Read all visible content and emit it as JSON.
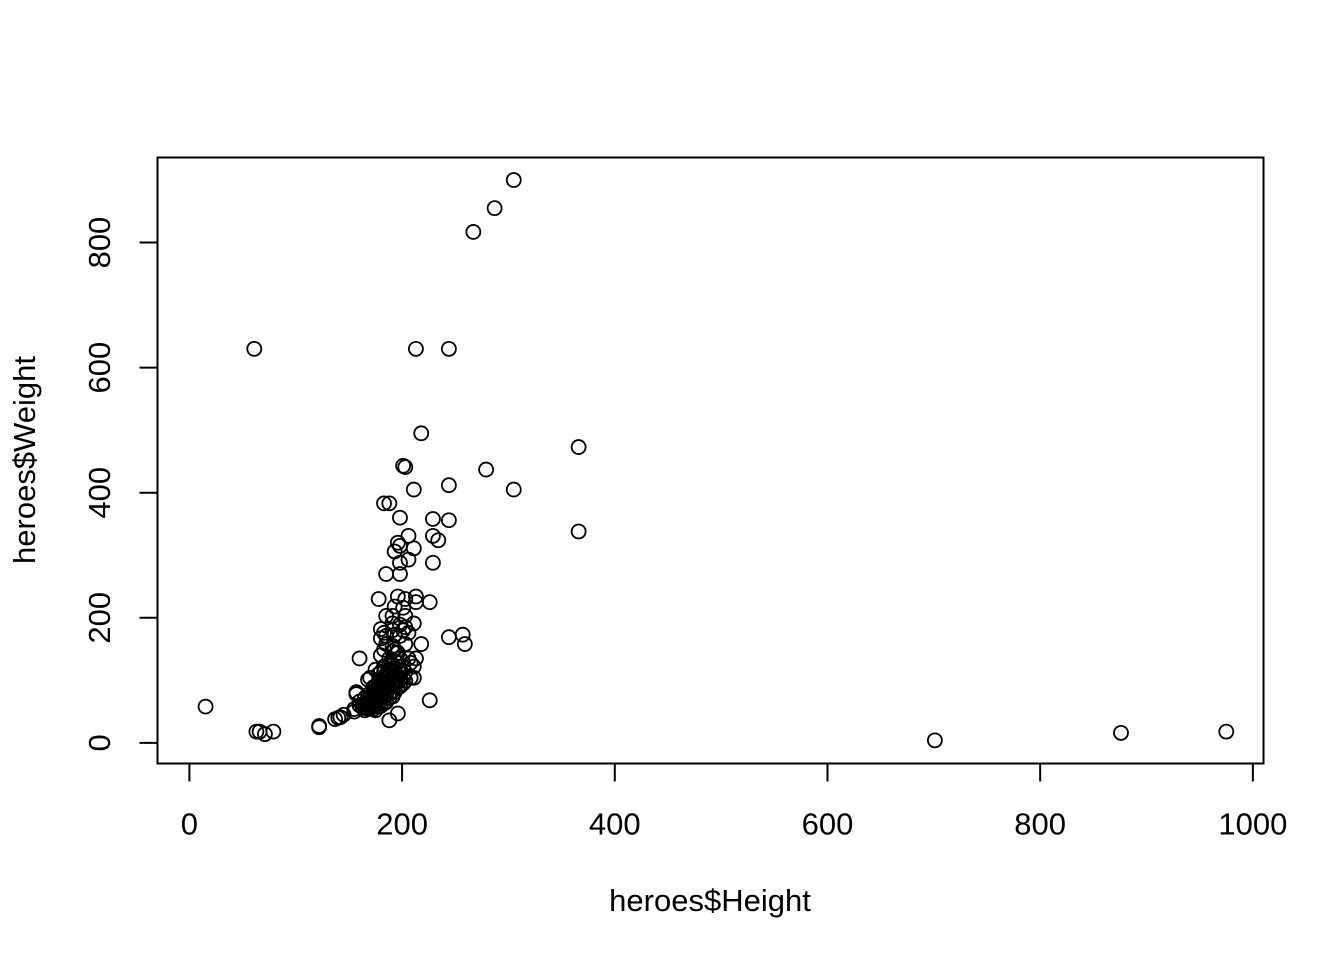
{
  "chart_data": {
    "type": "scatter",
    "title": "",
    "xlabel": "heroes$Height",
    "ylabel": "heroes$Weight",
    "xlim": [
      -30,
      1010
    ],
    "ylim": [
      -33,
      936
    ],
    "x_ticks": [
      0,
      200,
      400,
      600,
      800,
      1000
    ],
    "y_ticks": [
      0,
      200,
      400,
      600,
      800
    ],
    "x_tick_labels": [
      "0",
      "200",
      "400",
      "600",
      "800",
      "1000"
    ],
    "y_tick_labels": [
      "0",
      "200",
      "400",
      "600",
      "800"
    ],
    "grid": false,
    "legend": "none",
    "marker": "open-circle",
    "points": [
      [
        15.2,
        58
      ],
      [
        61,
        630
      ],
      [
        63,
        18
      ],
      [
        66,
        18
      ],
      [
        71,
        14
      ],
      [
        79,
        18
      ],
      [
        122,
        27
      ],
      [
        122,
        25
      ],
      [
        137,
        38
      ],
      [
        140,
        40
      ],
      [
        142,
        41
      ],
      [
        145,
        45
      ],
      [
        155,
        50
      ],
      [
        155,
        54
      ],
      [
        157,
        78
      ],
      [
        157,
        81
      ],
      [
        160,
        60
      ],
      [
        160,
        66
      ],
      [
        160,
        135
      ],
      [
        163,
        56
      ],
      [
        163,
        62
      ],
      [
        165,
        52
      ],
      [
        165,
        57
      ],
      [
        165,
        63
      ],
      [
        165,
        72
      ],
      [
        168,
        54
      ],
      [
        168,
        61
      ],
      [
        168,
        70
      ],
      [
        168,
        77
      ],
      [
        168,
        101
      ],
      [
        170,
        55
      ],
      [
        170,
        59
      ],
      [
        170,
        63
      ],
      [
        170,
        68
      ],
      [
        170,
        74
      ],
      [
        170,
        104
      ],
      [
        172,
        61
      ],
      [
        173,
        54
      ],
      [
        173,
        65
      ],
      [
        173,
        70
      ],
      [
        173,
        79
      ],
      [
        173,
        89
      ],
      [
        175,
        52
      ],
      [
        175,
        59
      ],
      [
        175,
        63
      ],
      [
        175,
        68
      ],
      [
        175,
        72
      ],
      [
        175,
        81
      ],
      [
        175,
        90
      ],
      [
        175,
        117
      ],
      [
        178,
        58
      ],
      [
        178,
        63
      ],
      [
        178,
        74
      ],
      [
        178,
        77
      ],
      [
        178,
        83
      ],
      [
        178,
        88
      ],
      [
        178,
        95
      ],
      [
        178,
        99
      ],
      [
        178,
        110
      ],
      [
        178,
        230
      ],
      [
        180,
        59
      ],
      [
        180,
        68
      ],
      [
        180,
        72
      ],
      [
        180,
        79
      ],
      [
        180,
        86
      ],
      [
        180,
        101
      ],
      [
        180,
        113
      ],
      [
        180,
        140
      ],
      [
        180,
        167
      ],
      [
        180,
        182
      ],
      [
        183,
        63
      ],
      [
        183,
        74
      ],
      [
        183,
        81
      ],
      [
        183,
        88
      ],
      [
        183,
        95
      ],
      [
        183,
        104
      ],
      [
        183,
        113
      ],
      [
        183,
        122
      ],
      [
        183,
        149
      ],
      [
        183,
        176
      ],
      [
        183,
        383
      ],
      [
        185,
        65
      ],
      [
        185,
        77
      ],
      [
        185,
        86
      ],
      [
        185,
        90
      ],
      [
        185,
        99
      ],
      [
        185,
        104
      ],
      [
        185,
        110
      ],
      [
        185,
        158
      ],
      [
        185,
        171
      ],
      [
        185,
        203
      ],
      [
        185,
        270
      ],
      [
        188,
        36
      ],
      [
        188,
        72
      ],
      [
        188,
        79
      ],
      [
        188,
        88
      ],
      [
        188,
        95
      ],
      [
        188,
        101
      ],
      [
        188,
        108
      ],
      [
        188,
        117
      ],
      [
        188,
        126
      ],
      [
        188,
        135
      ],
      [
        188,
        383
      ],
      [
        191,
        74
      ],
      [
        191,
        83
      ],
      [
        191,
        92
      ],
      [
        191,
        97
      ],
      [
        191,
        106
      ],
      [
        191,
        113
      ],
      [
        191,
        124
      ],
      [
        191,
        146
      ],
      [
        191,
        155
      ],
      [
        191,
        180
      ],
      [
        191,
        191
      ],
      [
        191,
        203
      ],
      [
        193,
        81
      ],
      [
        193,
        90
      ],
      [
        193,
        101
      ],
      [
        193,
        110
      ],
      [
        193,
        119
      ],
      [
        193,
        131
      ],
      [
        193,
        149
      ],
      [
        193,
        173
      ],
      [
        193,
        218
      ],
      [
        193,
        306
      ],
      [
        196,
        47
      ],
      [
        196,
        88
      ],
      [
        196,
        97
      ],
      [
        196,
        104
      ],
      [
        196,
        117
      ],
      [
        196,
        128
      ],
      [
        196,
        144
      ],
      [
        196,
        234
      ],
      [
        196,
        320
      ],
      [
        198,
        90
      ],
      [
        198,
        101
      ],
      [
        198,
        113
      ],
      [
        198,
        135
      ],
      [
        198,
        171
      ],
      [
        198,
        189
      ],
      [
        198,
        270
      ],
      [
        198,
        288
      ],
      [
        198,
        360
      ],
      [
        198,
        315
      ],
      [
        201,
        95
      ],
      [
        201,
        104
      ],
      [
        201,
        122
      ],
      [
        201,
        180
      ],
      [
        201,
        216
      ],
      [
        201,
        443
      ],
      [
        203,
        99
      ],
      [
        203,
        113
      ],
      [
        203,
        158
      ],
      [
        203,
        185
      ],
      [
        203,
        203
      ],
      [
        203,
        230
      ],
      [
        203,
        441
      ],
      [
        206,
        135
      ],
      [
        206,
        176
      ],
      [
        206,
        293
      ],
      [
        206,
        331
      ],
      [
        208,
        104
      ],
      [
        208,
        128
      ],
      [
        211,
        104
      ],
      [
        211,
        122
      ],
      [
        211,
        191
      ],
      [
        211,
        311
      ],
      [
        211,
        405
      ],
      [
        213,
        135
      ],
      [
        213,
        225
      ],
      [
        213,
        234
      ],
      [
        213,
        630
      ],
      [
        218,
        158
      ],
      [
        218,
        495
      ],
      [
        226,
        68
      ],
      [
        226,
        225
      ],
      [
        229,
        288
      ],
      [
        229,
        331
      ],
      [
        229,
        358
      ],
      [
        234,
        324
      ],
      [
        244,
        169
      ],
      [
        244,
        356
      ],
      [
        244,
        412
      ],
      [
        244,
        630
      ],
      [
        257,
        173
      ],
      [
        259,
        158
      ],
      [
        267,
        817
      ],
      [
        279,
        437
      ],
      [
        287,
        855
      ],
      [
        305,
        405
      ],
      [
        305,
        900
      ],
      [
        366,
        338
      ],
      [
        366,
        473
      ],
      [
        701,
        4
      ],
      [
        876,
        16
      ],
      [
        975,
        18
      ]
    ]
  }
}
